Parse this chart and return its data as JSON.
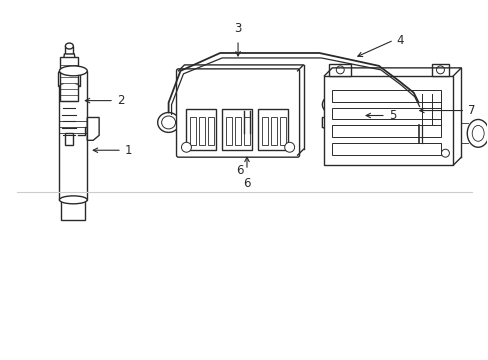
{
  "bg_color": "#ffffff",
  "lc": "#2a2a2a",
  "lw": 1.0,
  "font_size": 8.5,
  "fig_w": 4.89,
  "fig_h": 3.6,
  "dpi": 100
}
